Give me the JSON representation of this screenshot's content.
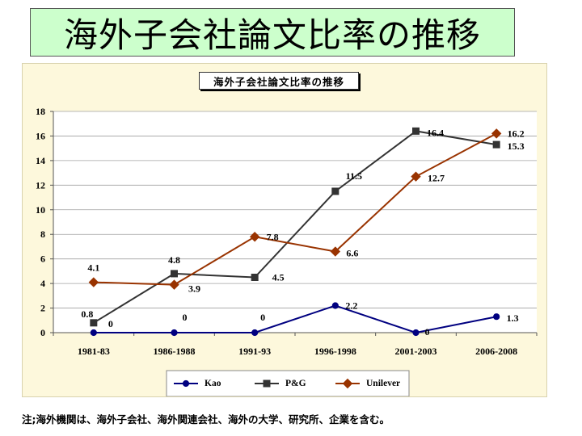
{
  "slide": {
    "title": "海外子会社論文比率の推移",
    "footnote": "注;海外機関は、海外子会社、海外関連会社、海外の大学、研究所、企業を含む。"
  },
  "colors": {
    "title_bg": "#ccffcc",
    "chart_bg": "#fdf8dc",
    "plot_bg": "#ffffff",
    "grid": "#a0a0a0"
  },
  "chart_data": {
    "type": "line",
    "title": "海外子会社論文比率の推移",
    "xlabel": "",
    "ylabel": "",
    "categories": [
      "1981-83",
      "1986-1988",
      "1991-93",
      "1996-1998",
      "2001-2003",
      "2006-2008"
    ],
    "ylim": [
      0,
      18
    ],
    "yticks": [
      0,
      2,
      4,
      6,
      8,
      10,
      12,
      14,
      16,
      18
    ],
    "grid": true,
    "legend": "bottom",
    "series": [
      {
        "name": "Kao",
        "values": [
          0,
          0,
          0,
          2.2,
          0,
          1.3
        ],
        "color": "#000080",
        "marker": "circle"
      },
      {
        "name": "P&G",
        "values": [
          0.8,
          4.8,
          4.5,
          11.5,
          16.4,
          15.3
        ],
        "color": "#333333",
        "marker": "square"
      },
      {
        "name": "Unilever",
        "values": [
          4.1,
          3.9,
          7.8,
          6.6,
          12.7,
          16.2
        ],
        "color": "#993300",
        "marker": "diamond"
      }
    ]
  }
}
